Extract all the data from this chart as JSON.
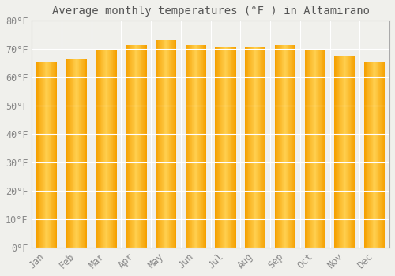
{
  "title": "Average monthly temperatures (°F ) in Altamirano",
  "months": [
    "Jan",
    "Feb",
    "Mar",
    "Apr",
    "May",
    "Jun",
    "Jul",
    "Aug",
    "Sep",
    "Oct",
    "Nov",
    "Dec"
  ],
  "values": [
    65.5,
    66.5,
    70.0,
    71.5,
    73.0,
    71.5,
    71.0,
    71.0,
    71.5,
    70.0,
    67.5,
    65.5
  ],
  "bar_color_center": "#FFD050",
  "bar_color_edge": "#F5A000",
  "background_color": "#F0F0EC",
  "plot_bg_color": "#F0F0EC",
  "grid_color": "#FFFFFF",
  "border_color": "#AAAAAA",
  "text_color": "#888888",
  "title_color": "#555555",
  "ylim": [
    0,
    80
  ],
  "yticks": [
    0,
    10,
    20,
    30,
    40,
    50,
    60,
    70,
    80
  ],
  "title_fontsize": 10,
  "tick_fontsize": 8.5,
  "bar_width": 0.7,
  "n_gradient_steps": 30
}
